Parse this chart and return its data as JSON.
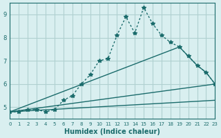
{
  "background_color": "#d9eff0",
  "grid_color": "#b0d0d0",
  "line_color": "#1a6b6b",
  "x_label": "Humidex (Indice chaleur)",
  "ylim": [
    4.5,
    9.5
  ],
  "xlim": [
    0,
    23
  ],
  "yticks": [
    5,
    6,
    7,
    8,
    9
  ],
  "xticks": [
    0,
    1,
    2,
    3,
    4,
    5,
    6,
    7,
    8,
    9,
    10,
    11,
    12,
    13,
    14,
    15,
    16,
    17,
    18,
    19,
    20,
    21,
    22,
    23
  ],
  "series1_x": [
    0,
    1,
    2,
    3,
    4,
    5,
    6,
    7,
    8,
    9,
    10,
    11,
    12,
    13,
    14,
    15,
    16,
    17,
    18,
    19,
    20,
    21,
    22,
    23
  ],
  "series1_y": [
    4.8,
    4.8,
    4.9,
    4.9,
    4.8,
    4.9,
    5.3,
    5.5,
    6.0,
    6.4,
    7.0,
    7.1,
    8.1,
    8.9,
    8.2,
    9.3,
    8.6,
    8.1,
    7.8,
    7.6,
    7.2,
    6.8,
    6.5,
    6.0
  ],
  "series2_x": [
    0,
    19,
    20,
    21,
    22,
    23
  ],
  "series2_y": [
    4.8,
    7.6,
    7.2,
    6.8,
    6.5,
    6.0
  ],
  "series3_x": [
    0,
    23
  ],
  "series3_y": [
    4.8,
    6.0
  ],
  "series4_x": [
    0,
    23
  ],
  "series4_y": [
    4.8,
    5.3
  ]
}
